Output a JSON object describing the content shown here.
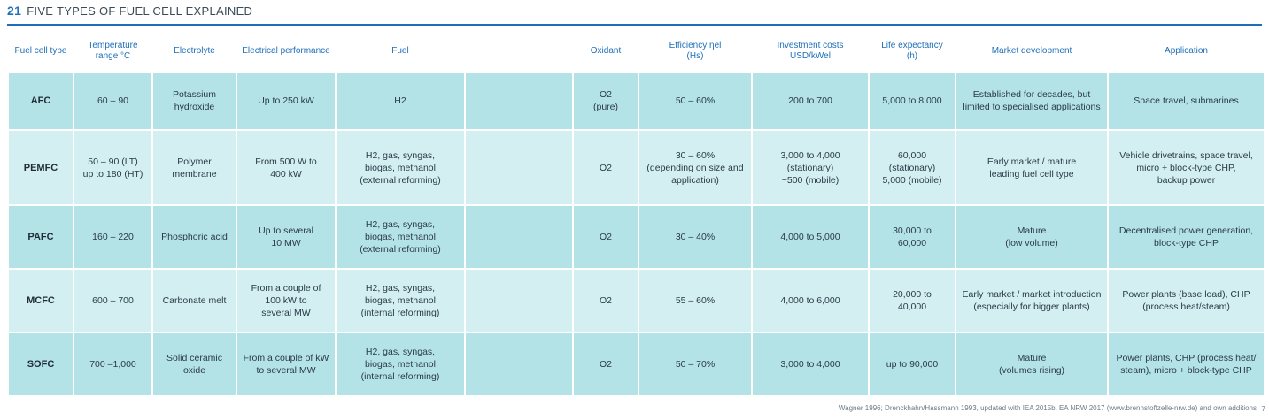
{
  "header": {
    "number": "21",
    "title": "FIVE TYPES OF FUEL CELL EXPLAINED"
  },
  "columns": [
    "Fuel cell type",
    "Temperature\nrange °C",
    "Electrolyte",
    "Electrical performance",
    "Fuel",
    "",
    "Oxidant",
    "Efficiency ηel\n(Hs)",
    "Investment costs\nUSD/kWel",
    "Life expectancy\n(h)",
    "Market development",
    "Application"
  ],
  "rows": [
    {
      "type": "AFC",
      "temperature": "60 – 90",
      "electrolyte": "Potassium\nhydroxide",
      "performance": "Up to 250 kW",
      "fuel": "H2",
      "blank": "",
      "oxidant": "O2\n(pure)",
      "efficiency": "50 – 60%",
      "investment": "200 to 700",
      "life": "5,000 to 8,000",
      "market": "Established for decades, but\nlimited to specialised applications",
      "application": "Space travel, submarines"
    },
    {
      "type": "PEMFC",
      "temperature": "50 – 90 (LT)\nup to 180 (HT)",
      "electrolyte": "Polymer\nmembrane",
      "performance": "From 500 W to\n400 kW",
      "fuel": "H2, gas, syngas,\nbiogas, methanol\n(external reforming)",
      "blank": "",
      "oxidant": "O2",
      "efficiency": "30 – 60%\n(depending on size and\napplication)",
      "investment": "3,000 to 4,000\n(stationary)\n~500 (mobile)",
      "life": "60,000\n(stationary)\n5,000 (mobile)",
      "market": "Early market / mature\nleading fuel cell type",
      "application": "Vehicle drivetrains, space travel,\nmicro + block-type CHP,\nbackup power"
    },
    {
      "type": "PAFC",
      "temperature": "160 – 220",
      "electrolyte": "Phosphoric acid",
      "performance": "Up to several\n10 MW",
      "fuel": "H2, gas, syngas,\nbiogas, methanol\n(external reforming)",
      "blank": "",
      "oxidant": "O2",
      "efficiency": "30 – 40%",
      "investment": "4,000 to 5,000",
      "life": "30,000 to\n60,000",
      "market": "Mature\n(low volume)",
      "application": "Decentralised power generation,\nblock-type CHP"
    },
    {
      "type": "MCFC",
      "temperature": "600 – 700",
      "electrolyte": "Carbonate melt",
      "performance": "From a couple of\n100 kW to\nseveral MW",
      "fuel": "H2, gas, syngas,\nbiogas, methanol\n(internal reforming)",
      "blank": "",
      "oxidant": "O2",
      "efficiency": "55 – 60%",
      "investment": "4,000 to 6,000",
      "life": "20,000 to\n40,000",
      "market": "Early market / market introduction\n(especially for bigger plants)",
      "application": "Power plants (base load), CHP\n(process heat/steam)"
    },
    {
      "type": "SOFC",
      "temperature": "700 –1,000",
      "electrolyte": "Solid ceramic\noxide",
      "performance": "From a couple of kW\nto several MW",
      "fuel": "H2, gas, syngas,\nbiogas, methanol\n(internal reforming)",
      "blank": "",
      "oxidant": "O2",
      "efficiency": "50 – 70%",
      "investment": "3,000 to 4,000",
      "life": "up to 90,000",
      "market": "Mature\n(volumes rising)",
      "application": "Power plants, CHP (process heat/\nsteam), micro + block-type CHP"
    }
  ],
  "source": "Wagner 1996; Drenckhahn/Hassmann 1993, updated with IEA 2015b, EA NRW 2017 (www.brennstoffzelle-nrw.de) and own additions",
  "page_mark": "7"
}
